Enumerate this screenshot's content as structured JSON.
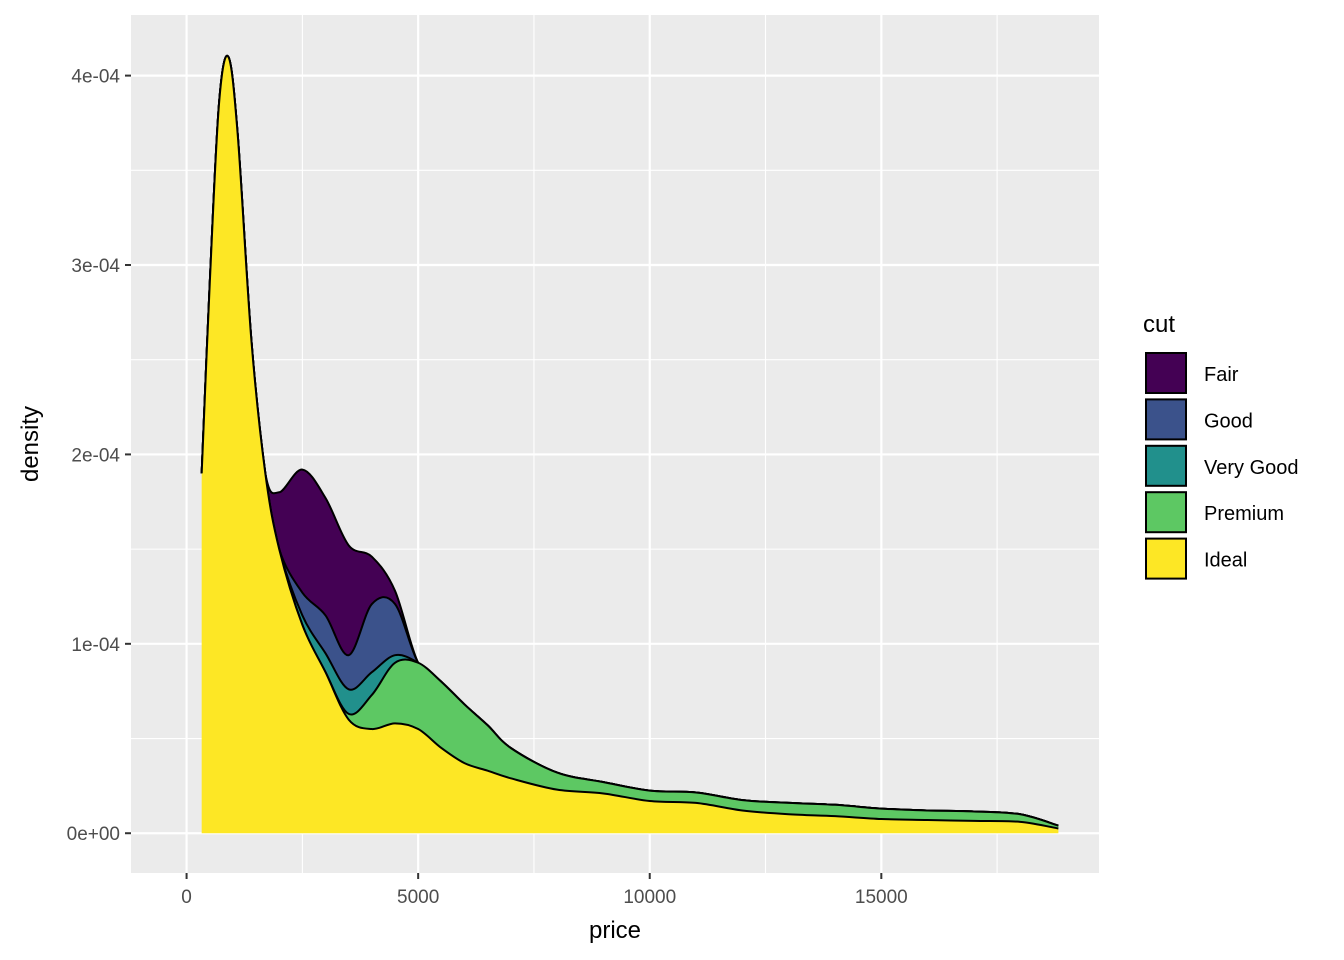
{
  "chart_data": {
    "type": "area",
    "subtype": "stacked density",
    "title": "",
    "xlabel": "price",
    "ylabel": "density",
    "xlim": [
      -1200,
      19700
    ],
    "ylim": [
      -2.1e-05,
      0.000432
    ],
    "x_ticks": [
      0,
      5000,
      10000,
      15000
    ],
    "x_tick_labels": [
      "0",
      "5000",
      "10000",
      "15000"
    ],
    "y_ticks": [
      0,
      0.0001,
      0.0002,
      0.0003,
      0.0004
    ],
    "y_tick_labels": [
      "0e+00",
      "1e-04",
      "2e-04",
      "3e-04",
      "4e-04"
    ],
    "grid": true,
    "legend": {
      "title": "cut",
      "position": "right",
      "entries": [
        "Fair",
        "Good",
        "Very Good",
        "Premium",
        "Ideal"
      ]
    },
    "colors": {
      "Fair": "#440154",
      "Good": "#3b528b",
      "Very Good": "#21908c",
      "Premium": "#5dc863",
      "Ideal": "#fde725",
      "panel_background": "#ebebeb",
      "grid": "#ffffff",
      "outline": "#000000"
    },
    "x": [
      326,
      500,
      700,
      900,
      1100,
      1400,
      1700,
      2000,
      2500,
      3000,
      3500,
      4000,
      4500,
      5000,
      5500,
      6000,
      6500,
      7000,
      8000,
      9000,
      10000,
      11000,
      12000,
      13000,
      14000,
      15000,
      16000,
      17000,
      18000,
      18823
    ],
    "series": [
      {
        "name": "Ideal",
        "values": [
          0.00019,
          0.00029,
          0.000385,
          0.00041,
          0.00037,
          0.00026,
          0.00019,
          0.00015,
          0.00011,
          8.5e-05,
          6e-05,
          5.5e-05,
          5.8e-05,
          5.5e-05,
          4.5e-05,
          3.7e-05,
          3.3e-05,
          2.9e-05,
          2.3e-05,
          2.1e-05,
          1.7e-05,
          1.6e-05,
          1.2e-05,
          1e-05,
          9e-06,
          7.5e-06,
          7e-06,
          6.5e-06,
          6e-06,
          2.5e-06
        ]
      },
      {
        "name": "Premium",
        "values": [
          0,
          0,
          0,
          0,
          0,
          0,
          0,
          0,
          0,
          0,
          3e-06,
          1.8e-05,
          3.2e-05,
          3.5e-05,
          3.5e-05,
          3.1e-05,
          2.4e-05,
          1.6e-05,
          9e-06,
          6e-06,
          5.5e-06,
          5.5e-06,
          5.5e-06,
          6e-06,
          6e-06,
          5.5e-06,
          5e-06,
          5e-06,
          4e-06,
          1.5e-06
        ]
      },
      {
        "name": "Very Good",
        "values": [
          0,
          0,
          0,
          0,
          0,
          0,
          0,
          0,
          5e-06,
          1e-05,
          1.3e-05,
          1.2e-05,
          4e-06,
          0,
          0,
          0,
          0,
          0,
          0,
          0,
          0,
          0,
          0,
          0,
          0,
          0,
          0,
          0,
          0,
          0
        ]
      },
      {
        "name": "Good",
        "values": [
          0,
          0,
          0,
          0,
          0,
          0,
          0,
          0,
          1.2e-05,
          2e-05,
          1.8e-05,
          3.6e-05,
          2.7e-05,
          0,
          0,
          0,
          0,
          0,
          0,
          0,
          0,
          0,
          0,
          0,
          0,
          0,
          0,
          0,
          0,
          0
        ]
      },
      {
        "name": "Fair",
        "values": [
          0,
          0,
          0,
          0,
          0,
          0,
          0,
          3e-05,
          6.5e-05,
          6.2e-05,
          5.8e-05,
          2.5e-05,
          7e-06,
          0,
          0,
          0,
          0,
          0,
          0,
          0,
          0,
          0,
          0,
          0,
          0,
          0,
          0,
          0,
          0,
          0
        ]
      }
    ]
  }
}
